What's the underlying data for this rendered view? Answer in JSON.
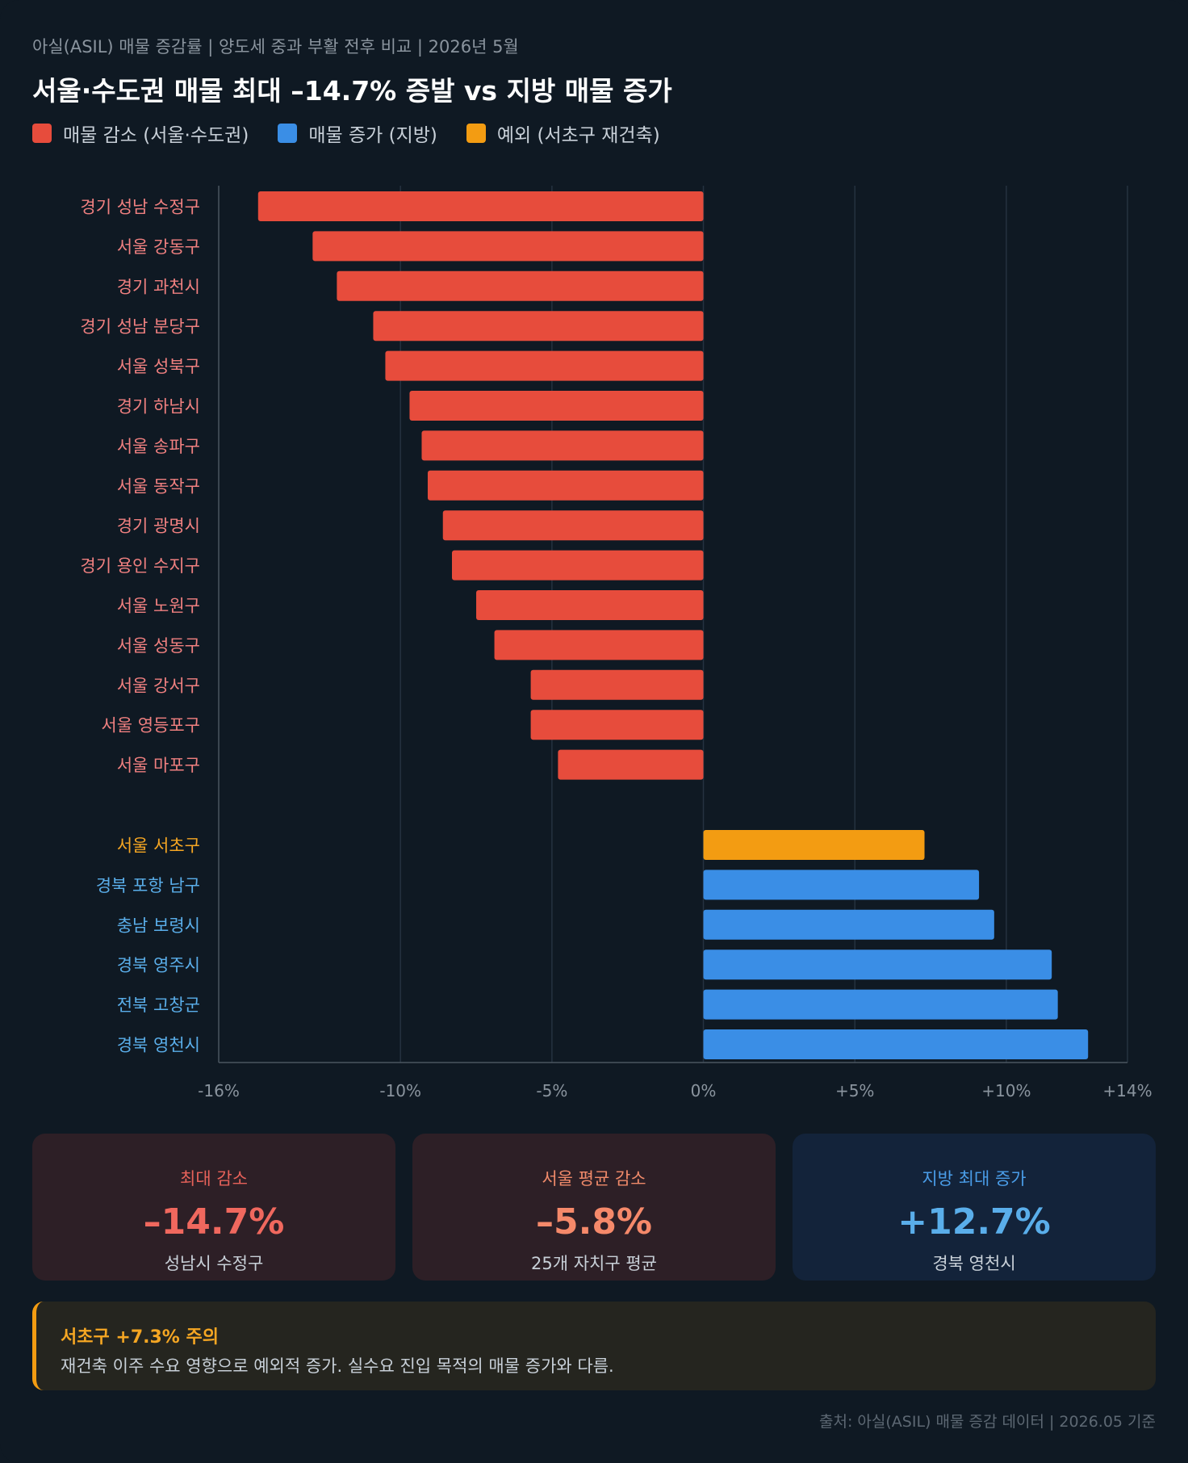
{
  "header": {
    "subtitle": "아실(ASIL) 매물 증감률 | 양도세 중과 부활 전후 비교 | 2026년 5월",
    "title": "서울·수도권 매물 최대 –14.7% 증발 vs 지방 매물 증가"
  },
  "legend": [
    {
      "label": "매물 감소 (서울·수도권)",
      "color": "#e74c3c"
    },
    {
      "label": "매물 증가 (지방)",
      "color": "#3a8ee6"
    },
    {
      "label": "예외 (서초구 재건축)",
      "color": "#f39c12"
    }
  ],
  "chart_data": {
    "type": "bar",
    "orientation": "horizontal",
    "categories": [
      "경기 성남 수정구",
      "서울 강동구",
      "경기 과천시",
      "경기 성남 분당구",
      "서울 성북구",
      "경기 하남시",
      "서울 송파구",
      "서울 동작구",
      "경기 광명시",
      "경기 용인 수지구",
      "서울 노원구",
      "서울 성동구",
      "서울 강서구",
      "서울 영등포구",
      "서울 마포구",
      "서울 서초구",
      "경북 포항 남구",
      "충남 보령시",
      "경북 영주시",
      "전북 고창군",
      "경북 영천시"
    ],
    "values": [
      -14.7,
      -12.9,
      -12.1,
      -10.9,
      -10.5,
      -9.7,
      -9.3,
      -9.1,
      -8.6,
      -8.3,
      -7.5,
      -6.9,
      -5.7,
      -5.7,
      -4.8,
      7.3,
      9.1,
      9.6,
      11.5,
      11.7,
      12.7
    ],
    "groups": [
      "decrease",
      "decrease",
      "decrease",
      "decrease",
      "decrease",
      "decrease",
      "decrease",
      "decrease",
      "decrease",
      "decrease",
      "decrease",
      "decrease",
      "decrease",
      "decrease",
      "decrease",
      "exception",
      "increase",
      "increase",
      "increase",
      "increase",
      "increase"
    ],
    "colors": {
      "decrease": "#e74c3c",
      "increase": "#3a8ee6",
      "exception": "#f39c12"
    },
    "label_colors": {
      "decrease": "#f08080",
      "increase": "#5aaeea",
      "exception": "#f5a623"
    },
    "xlim": [
      -16,
      14
    ],
    "x_ticks": [
      -16,
      -10,
      -5,
      0,
      5,
      10,
      14
    ],
    "x_tick_labels": [
      "-16%",
      "-10%",
      "-5%",
      "0%",
      "+5%",
      "+10%",
      "+14%"
    ],
    "grid": true
  },
  "stats": [
    {
      "label": "최대 감소",
      "value": "–14.7%",
      "desc": "성남시 수정구",
      "bg": "#2d1f26",
      "label_color": "#e8625a",
      "value_color": "#f0685e"
    },
    {
      "label": "서울 평균 감소",
      "value": "–5.8%",
      "desc": "25개 자치구 평균",
      "bg": "#2d1f26",
      "label_color": "#f08a6a",
      "value_color": "#f5896a"
    },
    {
      "label": "지방 최대 증가",
      "value": "+12.7%",
      "desc": "경북 영천시",
      "bg": "#13233a",
      "label_color": "#4a9de8",
      "value_color": "#5aaeea"
    }
  ],
  "note": {
    "title": "서초구 +7.3% 주의",
    "text": "재건축 이주 수요 영향으로 예외적 증가. 실수요 진입 목적의 매물 증가와 다름."
  },
  "source": "출처: 아실(ASIL) 매물 증감 데이터 | 2026.05 기준"
}
